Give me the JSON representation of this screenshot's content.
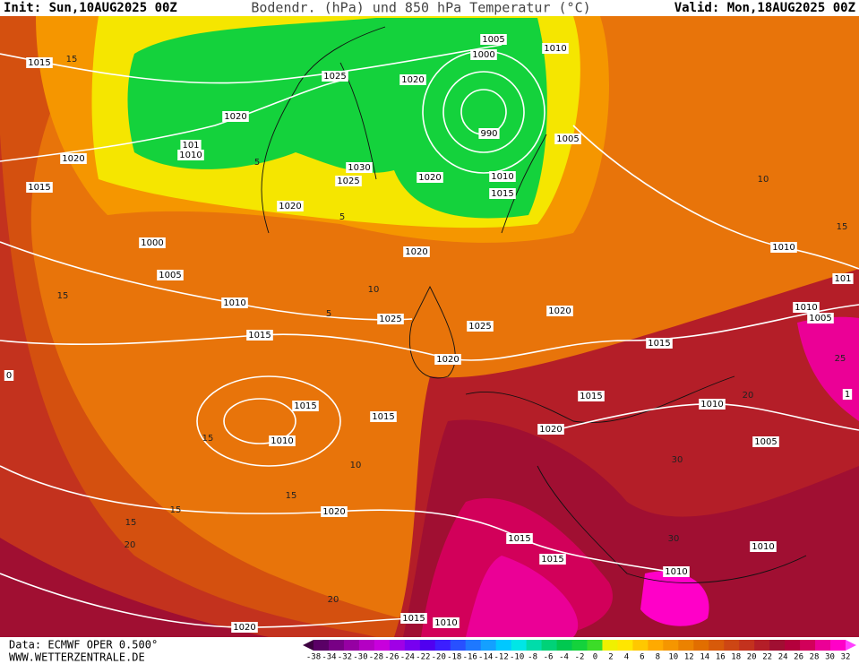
{
  "header": {
    "init": "Init: Sun,10AUG2025 00Z",
    "title": "Bodendr. (hPa) und 850 hPa Temperatur (°C)",
    "valid": "Valid: Mon,18AUG2025 00Z"
  },
  "footer": {
    "data": "Data: ECMWF OPER 0.500°",
    "site": "WWW.WETTERZENTRALE.DE"
  },
  "colorbar": {
    "labels": [
      -38,
      -34,
      -32,
      -30,
      -28,
      -26,
      -24,
      -22,
      -20,
      -18,
      -16,
      -14,
      -12,
      -10,
      -8,
      -6,
      -4,
      -2,
      0,
      2,
      4,
      6,
      8,
      10,
      12,
      14,
      16,
      18,
      20,
      22,
      24,
      26,
      28,
      30,
      32
    ],
    "colors": [
      "#3c0040",
      "#5a0066",
      "#780085",
      "#9600a3",
      "#b400c3",
      "#c800dc",
      "#a000e6",
      "#7800f0",
      "#5000f0",
      "#3c1eff",
      "#2850ff",
      "#1e78ff",
      "#14a0ff",
      "#00c8ff",
      "#00e6e6",
      "#00dcaa",
      "#00d278",
      "#00c850",
      "#14d23c",
      "#3cdc28",
      "#f0f000",
      "#ffe600",
      "#ffc800",
      "#ffaa00",
      "#f59600",
      "#eb8200",
      "#e16e00",
      "#d75a0a",
      "#cd4614",
      "#c3321e",
      "#b41e28",
      "#a00f32",
      "#b4003c",
      "#d2005a",
      "#eb0096",
      "#ff00c8",
      "#ff40ff"
    ]
  },
  "isobar_labels": [
    "1015",
    "1020",
    "1015",
    "1000",
    "1005",
    "1010",
    "1015",
    "101",
    "1010",
    "1020",
    "1025",
    "1020",
    "1030",
    "1025",
    "1020",
    "1020",
    "1000",
    "1005",
    "1010",
    "990",
    "1005",
    "1010",
    "1015",
    "1020",
    "1025",
    "1025",
    "1020",
    "1020",
    "1015",
    "1015",
    "1010",
    "1015",
    "1015",
    "1010",
    "1020",
    "1005",
    "1020",
    "1015",
    "1015",
    "1010",
    "1010",
    "1010",
    "101",
    "1010",
    "1005",
    "1015",
    "1010",
    "1020",
    "1",
    "0"
  ],
  "isotherm_labels": [
    "15",
    "5",
    "5",
    "10",
    "5",
    "15",
    "10",
    "15",
    "20",
    "15",
    "10",
    "15",
    "15",
    "15",
    "20",
    "20",
    "30",
    "30",
    "25"
  ]
}
